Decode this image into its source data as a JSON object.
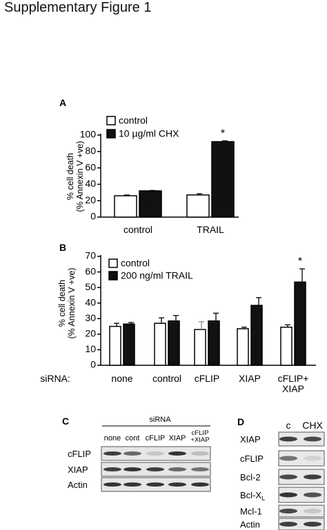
{
  "figure": {
    "title": "Supplementary Figure 1"
  },
  "chart_data": [
    {
      "panel": "A",
      "type": "bar",
      "categories": [
        "control",
        "TRAIL"
      ],
      "series": [
        {
          "name": "control",
          "values": [
            26,
            27
          ],
          "errors": [
            1,
            1.5
          ],
          "fill": "#ffffff"
        },
        {
          "name": "10 µg/ml CHX",
          "values": [
            32,
            92
          ],
          "errors": [
            0.5,
            1
          ],
          "fill": "#111111"
        }
      ],
      "yticks": [
        0,
        20,
        40,
        60,
        80,
        100
      ],
      "ylim": [
        0,
        100
      ],
      "ylabel_lines": [
        "% cell death",
        "(% Annexin V +ve)"
      ],
      "annotations": [
        {
          "category": "TRAIL",
          "series": 1,
          "text": "*"
        }
      ],
      "legend": "top-left"
    },
    {
      "panel": "B",
      "type": "bar",
      "categories": [
        "none",
        "control",
        "cFLIP",
        "XIAP",
        "cFLIP+\nXIAP"
      ],
      "category_lines": [
        [
          "none"
        ],
        [
          "control"
        ],
        [
          "cFLIP"
        ],
        [
          "XIAP"
        ],
        [
          "cFLIP+",
          "XIAP"
        ]
      ],
      "category_prefix": "siRNA:",
      "series": [
        {
          "name": "control",
          "values": [
            25,
            27,
            23,
            23.5,
            24.5
          ],
          "errors": [
            2,
            3.5,
            5,
            1,
            1.5
          ],
          "fill": "#ffffff"
        },
        {
          "name": "200 ng/ml TRAIL",
          "values": [
            26.5,
            28.5,
            28.5,
            38.5,
            53.5
          ],
          "errors": [
            1,
            3.5,
            5,
            5,
            8.5
          ],
          "fill": "#111111"
        }
      ],
      "yticks": [
        0,
        10,
        20,
        30,
        40,
        50,
        60,
        70
      ],
      "ylim": [
        0,
        70
      ],
      "ylabel_lines": [
        "% cell death",
        "(% Annexin V +ve)"
      ],
      "annotations": [
        {
          "category": "cFLIP+\nXIAP",
          "series": 1,
          "text": "*"
        }
      ],
      "legend": "top-left"
    }
  ],
  "panel_c": {
    "letter": "C",
    "header": "siRNA",
    "lanes": [
      "none",
      "cont",
      "cFLIP",
      "XIAP",
      "cFLIP\n+XIAP"
    ],
    "lane_lines": [
      [
        "none"
      ],
      [
        "cont"
      ],
      [
        "cFLIP"
      ],
      [
        "XIAP"
      ],
      [
        "cFLIP",
        "+XIAP"
      ]
    ],
    "rows": [
      {
        "label": "cFLIP",
        "intensity": [
          0.8,
          0.6,
          0.15,
          0.85,
          0.2
        ]
      },
      {
        "label": "XIAP",
        "intensity": [
          0.8,
          0.85,
          0.8,
          0.6,
          0.55
        ]
      },
      {
        "label": "Actin",
        "intensity": [
          0.85,
          0.85,
          0.85,
          0.85,
          0.85
        ]
      }
    ]
  },
  "panel_d": {
    "letter": "D",
    "lanes": [
      "c",
      "CHX"
    ],
    "rows": [
      {
        "label": "XIAP",
        "intensity": [
          0.8,
          0.75
        ]
      },
      {
        "label": "cFLIP",
        "intensity": [
          0.55,
          0.1
        ]
      },
      {
        "label": "Bcl-2",
        "intensity": [
          0.75,
          0.8
        ]
      },
      {
        "label": "Bcl-X",
        "sub": "L",
        "intensity": [
          0.85,
          0.7
        ]
      },
      {
        "label": "Mcl-1",
        "intensity": [
          0.75,
          0.15
        ]
      },
      {
        "label": "Actin",
        "intensity": [
          0.8,
          0.8
        ]
      }
    ]
  }
}
